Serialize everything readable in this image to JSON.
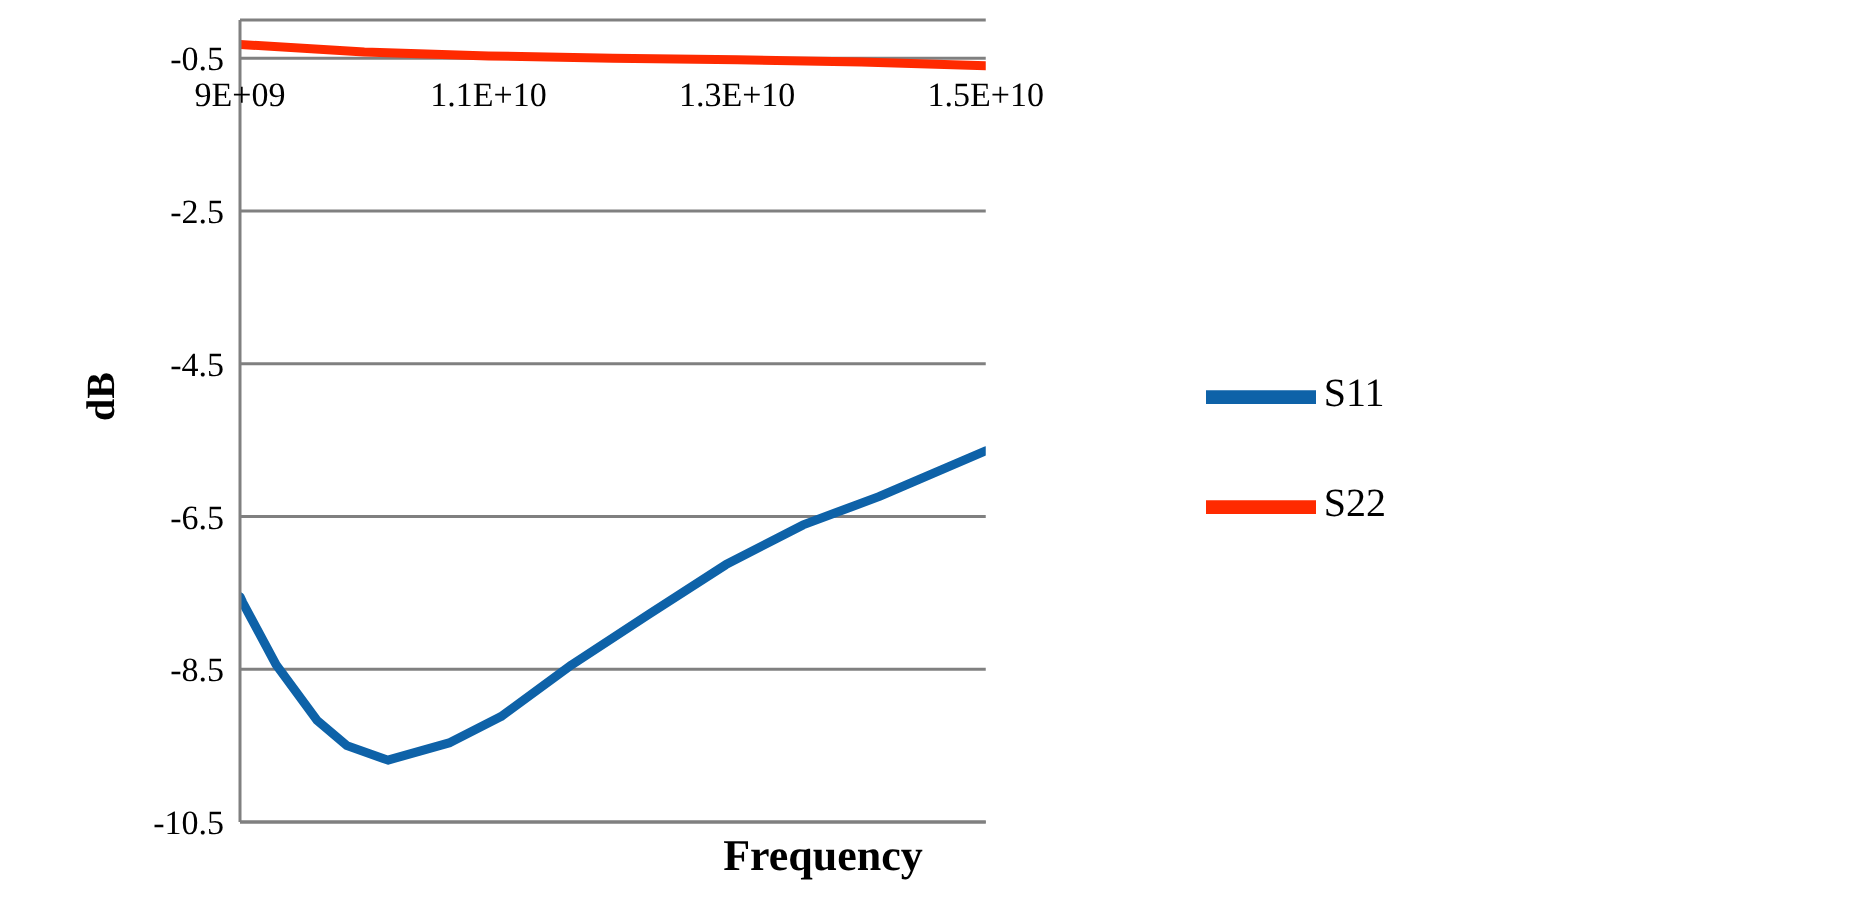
{
  "chart_data": {
    "type": "line",
    "xlabel": "Frequency",
    "ylabel": "dB",
    "xlim": [
      9000000000,
      15000000000
    ],
    "xticks": [
      {
        "value": 9000000000,
        "label": "9E+09"
      },
      {
        "value": 11000000000,
        "label": "1.1E+10"
      },
      {
        "value": 13000000000,
        "label": "1.3E+10"
      },
      {
        "value": 15000000000,
        "label": "1.5E+10"
      }
    ],
    "ylim": [
      -10.5,
      0
    ],
    "yticks": [
      -10.5,
      -8.5,
      -6.5,
      -4.5,
      -2.5,
      -0.5
    ],
    "grid": "y",
    "legend": "right",
    "marker": "none",
    "series": [
      {
        "name": "S11",
        "color": "#0e62a8",
        "x": [
          9000000000,
          9020000000,
          9290000000,
          9620000000,
          9860000000,
          10190000000,
          10690000000,
          11100000000,
          11670000000,
          12290000000,
          12910000000,
          13530000000,
          14140000000,
          15000000000
        ],
        "values": [
          -7.55,
          -7.62,
          -8.44,
          -9.17,
          -9.5,
          -9.69,
          -9.46,
          -9.12,
          -8.44,
          -7.78,
          -7.13,
          -6.61,
          -6.24,
          -5.64
        ]
      },
      {
        "name": "S22",
        "color": "#ff2a00",
        "x": [
          9000000000,
          10000000000,
          11000000000,
          12000000000,
          13000000000,
          14000000000,
          15000000000
        ],
        "values": [
          -0.32,
          -0.42,
          -0.47,
          -0.5,
          -0.52,
          -0.55,
          -0.6
        ]
      }
    ]
  }
}
